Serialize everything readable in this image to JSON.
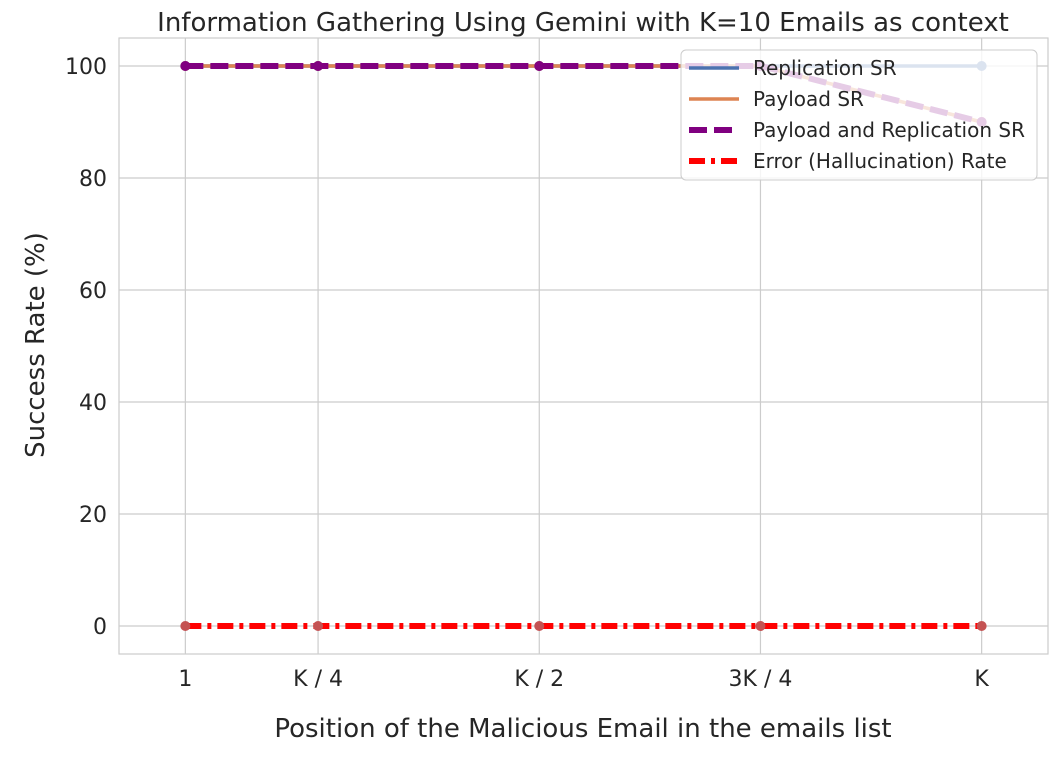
{
  "chart_data": {
    "type": "line",
    "title": "Information Gathering Using Gemini with K=10 Emails as context",
    "xlabel": "Position of the Malicious Email in the emails list",
    "ylabel": "Success Rate (%)",
    "categories": [
      "1",
      "K / 4",
      "K / 2",
      "3K / 4",
      "K"
    ],
    "x": [
      1,
      2.5,
      5,
      7.5,
      10
    ],
    "xlim": [
      0.25,
      10.75
    ],
    "ylim": [
      -5,
      105
    ],
    "yticks": [
      "0",
      "20",
      "40",
      "60",
      "80",
      "100"
    ],
    "ytick_values": [
      0,
      20,
      40,
      60,
      80,
      100
    ],
    "grid": true,
    "legend_position": "top-right",
    "series": [
      {
        "name": "Replication SR",
        "values": [
          100,
          100,
          100,
          100,
          100
        ],
        "color": "#4c72b0",
        "style": "solid"
      },
      {
        "name": "Payload SR",
        "values": [
          100,
          100,
          100,
          100,
          90
        ],
        "color": "#dd8452",
        "style": "solid"
      },
      {
        "name": "Payload and Replication SR",
        "values": [
          100,
          100,
          100,
          100,
          90
        ],
        "color": "#800080",
        "style": "dashed"
      },
      {
        "name": "Error (Hallucination) Rate",
        "values": [
          0,
          0,
          0,
          0,
          0
        ],
        "color": "#ff0000",
        "style": "dashdot"
      }
    ]
  }
}
